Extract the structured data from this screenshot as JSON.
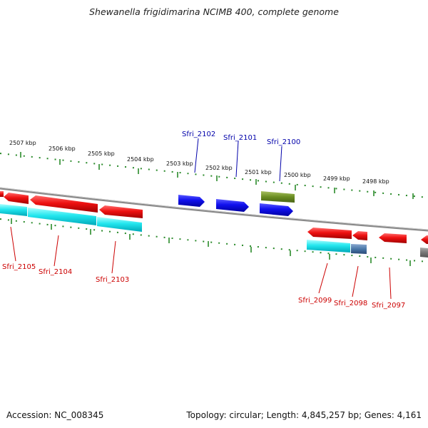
{
  "title": "Shewanella frigidimarina NCIMB 400, complete genome",
  "footer": {
    "accession": "Accession: NC_008345",
    "topology": "Topology: circular; Length: 4,845,257 bp; Genes: 4,161"
  },
  "ticks": [
    "2507 kbp",
    "2506 kbp",
    "2505 kbp",
    "2504 kbp",
    "2503 kbp",
    "2502 kbp",
    "2501 kbp",
    "2500 kbp",
    "2499 kbp",
    "2498 kbp"
  ],
  "genes": [
    {
      "label": "Sfri_2105",
      "color": "#cc0000"
    },
    {
      "label": "Sfri_2104",
      "color": "#cc0000"
    },
    {
      "label": "Sfri_2103",
      "color": "#cc0000"
    },
    {
      "label": "Sfri_2102",
      "color": "#0000aa"
    },
    {
      "label": "Sfri_2101",
      "color": "#0000aa"
    },
    {
      "label": "Sfri_2100",
      "color": "#0000aa"
    },
    {
      "label": "Sfri_2099",
      "color": "#cc0000"
    },
    {
      "label": "Sfri_2098",
      "color": "#cc0000"
    },
    {
      "label": "Sfri_2097",
      "color": "#cc0000"
    }
  ],
  "colors": {
    "cds": "#ee1111",
    "forward_cds": "#1111ee",
    "gene_track": "#22e6ee",
    "rna": "#6b8e23",
    "other": "#777777",
    "backbone": "#888888",
    "tick": "#2a8a2a"
  }
}
